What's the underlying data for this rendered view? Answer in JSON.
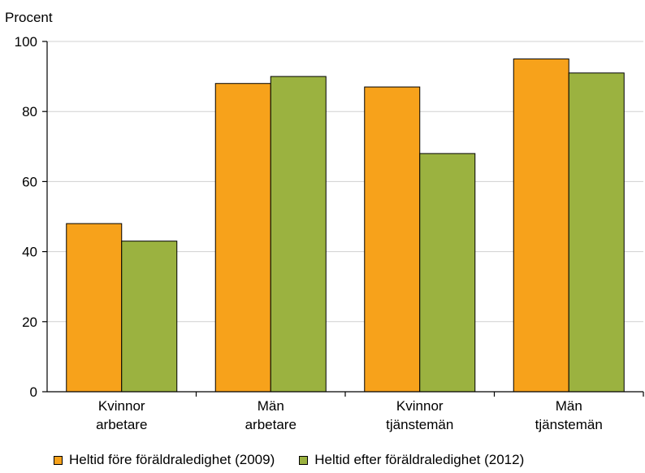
{
  "chart_data": {
    "type": "bar",
    "ylabel": "Procent",
    "ylim": [
      0,
      100
    ],
    "yticks": [
      0,
      20,
      40,
      60,
      80,
      100
    ],
    "grid": true,
    "legend_position": "bottom",
    "categories": [
      [
        "Kvinnor",
        "arbetare"
      ],
      [
        "Män",
        "arbetare"
      ],
      [
        "Kvinnor",
        "tjänstemän"
      ],
      [
        "Män",
        "tjänstemän"
      ]
    ],
    "series": [
      {
        "name": "Heltid före föräldraledighet (2009)",
        "color": "#f7a21b",
        "values": [
          48,
          88,
          87,
          95
        ]
      },
      {
        "name": "Heltid efter föräldraledighet (2012)",
        "color": "#9bb240",
        "values": [
          43,
          90,
          68,
          91
        ]
      }
    ]
  }
}
